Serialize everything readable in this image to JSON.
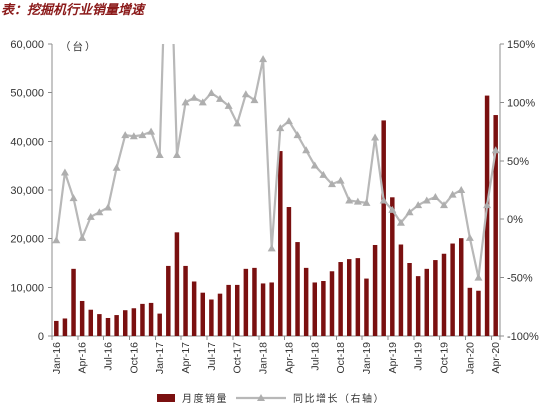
{
  "chart_data": {
    "type": "bar",
    "title": "表：挖掘机行业销量增速",
    "y_unit_label": "（台）",
    "x_tick_labels": [
      "Jan-16",
      "Apr-16",
      "Jul-16",
      "Oct-16",
      "Jan-17",
      "Apr-17",
      "Jul-17",
      "Oct-17",
      "Jan-18",
      "Apr-18",
      "Jul-18",
      "Oct-18",
      "Jan-19",
      "Apr-19",
      "Jul-19",
      "Oct-19",
      "Jan-20",
      "Apr-20"
    ],
    "ylim": [
      0,
      60000
    ],
    "y_ticks": [
      "0",
      "10,000",
      "20,000",
      "30,000",
      "40,000",
      "50,000",
      "60,000"
    ],
    "y2lim": [
      -100,
      150
    ],
    "y2_ticks": [
      "-100%",
      "-50%",
      "0%",
      "50%",
      "100%",
      "150%"
    ],
    "grid": false,
    "legend": "bottom",
    "series": [
      {
        "name": "月度销量",
        "type": "bar",
        "axis": "left",
        "color": "#7a1010",
        "values": [
          3100,
          3600,
          13800,
          7200,
          5400,
          4500,
          3700,
          4300,
          5300,
          5700,
          6600,
          6800,
          4600,
          14400,
          21300,
          14400,
          11200,
          8900,
          7500,
          8700,
          10500,
          10500,
          13800,
          14000,
          10800,
          11000,
          38000,
          26500,
          19300,
          14000,
          11000,
          11300,
          13300,
          15200,
          15800,
          16000,
          11800,
          18700,
          44300,
          28500,
          18800,
          15000,
          12300,
          13800,
          15600,
          16900,
          19000,
          20100,
          9900,
          9300,
          49400,
          45400
        ]
      },
      {
        "name": "同比增长（右轴）",
        "type": "line",
        "axis": "right",
        "marker": "triangle",
        "color": "#b8b8b8",
        "values": [
          -18,
          40,
          18,
          -16,
          2,
          6,
          10,
          44,
          72,
          71,
          72,
          75,
          55,
          300,
          55,
          100,
          104,
          100,
          108,
          103,
          97,
          82,
          107,
          102,
          137,
          -25,
          78,
          84,
          72,
          59,
          46,
          38,
          30,
          33,
          16,
          15,
          14,
          70,
          16,
          8,
          -3,
          6,
          12,
          16,
          19,
          12,
          21,
          25,
          -16,
          -50,
          12,
          59
        ]
      }
    ]
  }
}
